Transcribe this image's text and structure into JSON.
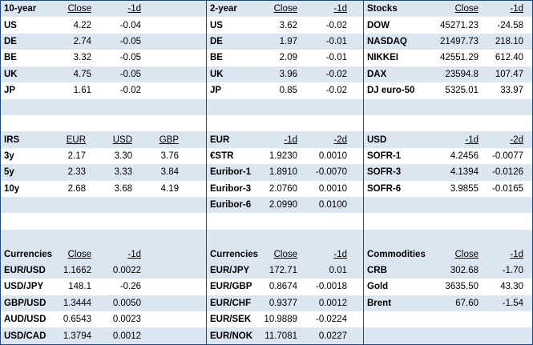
{
  "panels": [
    {
      "header": [
        "10-year",
        "Close",
        "-1d"
      ],
      "rows": [
        [
          "US",
          "4.22",
          "-0.04"
        ],
        [
          "DE",
          "2.74",
          "-0.05"
        ],
        [
          "BE",
          "3.32",
          "-0.05"
        ],
        [
          "UK",
          "4.75",
          "-0.05"
        ],
        [
          "JP",
          "1.61",
          "-0.02"
        ]
      ]
    },
    {
      "header": [
        "2-year",
        "Close",
        "-1d"
      ],
      "rows": [
        [
          "US",
          "3.62",
          "-0.02"
        ],
        [
          "DE",
          "1.97",
          "-0.01"
        ],
        [
          "BE",
          "2.09",
          "-0.01"
        ],
        [
          "UK",
          "3.96",
          "-0.02"
        ],
        [
          "JP",
          "0.85",
          "-0.02"
        ]
      ]
    },
    {
      "header": [
        "Stocks",
        "Close",
        "-1d"
      ],
      "rows": [
        [
          "DOW",
          "45271.23",
          "-24.58"
        ],
        [
          "NASDAQ",
          "21497.73",
          "218.10"
        ],
        [
          "NIKKEI",
          "42551.29",
          "612.40"
        ],
        [
          "DAX",
          "23594.8",
          "107.47"
        ],
        [
          "DJ euro-50",
          "5325.01",
          "33.97"
        ]
      ]
    },
    {
      "header": [
        "IRS",
        "EUR",
        "USD",
        "GBP"
      ],
      "rows": [
        [
          "3y",
          "2.17",
          "3.30",
          "3.76"
        ],
        [
          "5y",
          "2.33",
          "3.33",
          "3.84"
        ],
        [
          "10y",
          "2.68",
          "3.68",
          "4.19"
        ]
      ]
    },
    {
      "header": [
        "EUR",
        "-1d",
        "-2d"
      ],
      "rows": [
        [
          "€STR",
          "1.9230",
          "0.0010"
        ],
        [
          "Euribor-1",
          "1.8910",
          "-0.0070"
        ],
        [
          "Euribor-3",
          "2.0760",
          "0.0010"
        ],
        [
          "Euribor-6",
          "2.0990",
          "0.0100"
        ]
      ]
    },
    {
      "header": [
        "USD",
        "-1d",
        "-2d"
      ],
      "rows": [
        [
          "SOFR-1",
          "4.2456",
          "-0.0077"
        ],
        [
          "SOFR-3",
          "4.1394",
          "-0.0126"
        ],
        [
          "SOFR-6",
          "3.9855",
          "-0.0165"
        ]
      ]
    },
    {
      "header": [
        "Currencies",
        "Close",
        "-1d"
      ],
      "rows": [
        [
          "EUR/USD",
          "1.1662",
          "0.0022"
        ],
        [
          "USD/JPY",
          "148.1",
          "-0.26"
        ],
        [
          "GBP/USD",
          "1.3444",
          "0.0050"
        ],
        [
          "AUD/USD",
          "0.6543",
          "0.0023"
        ],
        [
          "USD/CAD",
          "1.3794",
          "0.0012"
        ]
      ]
    },
    {
      "header": [
        "Currencies",
        "Close",
        "-1d"
      ],
      "rows": [
        [
          "EUR/JPY",
          "172.71",
          "0.01"
        ],
        [
          "EUR/GBP",
          "0.8674",
          "-0.0018"
        ],
        [
          "EUR/CHF",
          "0.9377",
          "0.0012"
        ],
        [
          "EUR/SEK",
          "10.9889",
          "-0.0224"
        ],
        [
          "EUR/NOK",
          "11.7081",
          "0.0227"
        ]
      ]
    },
    {
      "header": [
        "Commodities",
        "Close",
        "-1d"
      ],
      "rows": [
        [
          "CRB",
          "302.68",
          "-1.70"
        ],
        [
          "Gold",
          "3635.50",
          "43.30"
        ],
        [
          "Brent",
          "67.60",
          "-1.54"
        ]
      ]
    }
  ]
}
